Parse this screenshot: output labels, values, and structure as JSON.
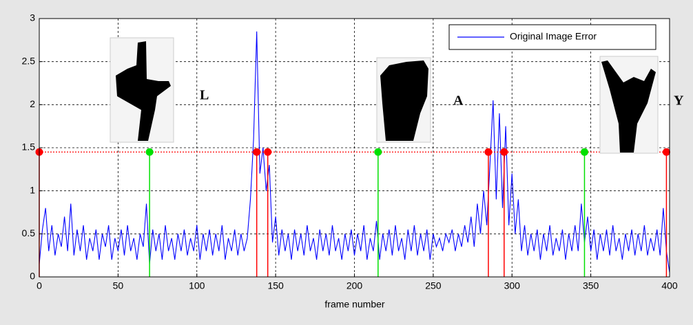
{
  "chart_data": {
    "type": "line",
    "x_label": "frame number",
    "xlim": [
      0,
      400
    ],
    "xticks": [
      0,
      50,
      100,
      150,
      200,
      250,
      300,
      350,
      400
    ],
    "ylim": [
      0,
      3
    ],
    "yticks": [
      0,
      0.5,
      1,
      1.5,
      2,
      2.5,
      3
    ],
    "grid": true,
    "legend": "upper right",
    "x": [
      0,
      2,
      4,
      6,
      8,
      10,
      12,
      14,
      16,
      18,
      20,
      22,
      24,
      26,
      28,
      30,
      32,
      34,
      36,
      38,
      40,
      42,
      44,
      46,
      48,
      50,
      52,
      54,
      56,
      58,
      60,
      62,
      64,
      66,
      68,
      70,
      72,
      74,
      76,
      78,
      80,
      82,
      84,
      86,
      88,
      90,
      92,
      94,
      96,
      98,
      100,
      102,
      104,
      106,
      108,
      110,
      112,
      114,
      116,
      118,
      120,
      122,
      124,
      126,
      128,
      130,
      132,
      134,
      136,
      138,
      140,
      142,
      144,
      146,
      148,
      150,
      152,
      154,
      156,
      158,
      160,
      162,
      164,
      166,
      168,
      170,
      172,
      174,
      176,
      178,
      180,
      182,
      184,
      186,
      188,
      190,
      192,
      194,
      196,
      198,
      200,
      202,
      204,
      206,
      208,
      210,
      212,
      214,
      216,
      218,
      220,
      222,
      224,
      226,
      228,
      230,
      232,
      234,
      236,
      238,
      240,
      242,
      244,
      246,
      248,
      250,
      252,
      254,
      256,
      258,
      260,
      262,
      264,
      266,
      268,
      270,
      272,
      274,
      276,
      278,
      280,
      282,
      284,
      286,
      288,
      290,
      292,
      294,
      296,
      298,
      300,
      302,
      304,
      306,
      308,
      310,
      312,
      314,
      316,
      318,
      320,
      322,
      324,
      326,
      328,
      330,
      332,
      334,
      336,
      338,
      340,
      342,
      344,
      346,
      348,
      350,
      352,
      354,
      356,
      358,
      360,
      362,
      364,
      366,
      368,
      370,
      372,
      374,
      376,
      378,
      380,
      382,
      384,
      386,
      388,
      390,
      392,
      394,
      396,
      398,
      400
    ],
    "series": [
      {
        "name": "Original Image Error",
        "color": "#0000ff",
        "values": [
          0.15,
          0.55,
          0.8,
          0.3,
          0.6,
          0.25,
          0.5,
          0.35,
          0.7,
          0.3,
          0.85,
          0.25,
          0.55,
          0.3,
          0.6,
          0.2,
          0.45,
          0.3,
          0.55,
          0.2,
          0.5,
          0.35,
          0.6,
          0.2,
          0.45,
          0.3,
          0.55,
          0.25,
          0.6,
          0.3,
          0.45,
          0.2,
          0.5,
          0.35,
          0.85,
          0.15,
          0.55,
          0.3,
          0.5,
          0.2,
          0.6,
          0.3,
          0.45,
          0.2,
          0.5,
          0.3,
          0.55,
          0.25,
          0.45,
          0.3,
          0.6,
          0.2,
          0.5,
          0.3,
          0.55,
          0.25,
          0.5,
          0.3,
          0.6,
          0.2,
          0.45,
          0.3,
          0.55,
          0.25,
          0.5,
          0.3,
          0.45,
          0.9,
          1.6,
          2.85,
          1.2,
          1.5,
          1.0,
          1.3,
          0.4,
          0.7,
          0.25,
          0.55,
          0.3,
          0.5,
          0.2,
          0.55,
          0.3,
          0.5,
          0.25,
          0.6,
          0.3,
          0.45,
          0.2,
          0.55,
          0.3,
          0.5,
          0.25,
          0.6,
          0.3,
          0.45,
          0.2,
          0.5,
          0.3,
          0.55,
          0.25,
          0.5,
          0.3,
          0.6,
          0.2,
          0.45,
          0.3,
          0.65,
          0.2,
          0.5,
          0.3,
          0.55,
          0.25,
          0.6,
          0.3,
          0.45,
          0.2,
          0.55,
          0.3,
          0.6,
          0.25,
          0.5,
          0.3,
          0.55,
          0.2,
          0.5,
          0.35,
          0.45,
          0.3,
          0.5,
          0.4,
          0.55,
          0.3,
          0.5,
          0.35,
          0.6,
          0.4,
          0.7,
          0.35,
          0.85,
          0.5,
          1.0,
          0.6,
          1.3,
          2.05,
          0.9,
          1.9,
          0.8,
          1.75,
          0.6,
          1.2,
          0.5,
          0.9,
          0.3,
          0.6,
          0.25,
          0.5,
          0.3,
          0.55,
          0.2,
          0.5,
          0.3,
          0.6,
          0.25,
          0.45,
          0.3,
          0.55,
          0.2,
          0.5,
          0.3,
          0.6,
          0.3,
          0.85,
          0.4,
          0.7,
          0.3,
          0.55,
          0.2,
          0.5,
          0.3,
          0.55,
          0.25,
          0.6,
          0.3,
          0.45,
          0.2,
          0.5,
          0.3,
          0.55,
          0.25,
          0.5,
          0.3,
          0.6,
          0.25,
          0.45,
          0.3,
          0.55,
          0.25,
          0.8,
          0.3,
          0.05
        ]
      }
    ],
    "markers": {
      "level": 1.45,
      "end_color": "#ff0000",
      "start_color": "#00e000",
      "ends": [
        0,
        138,
        145,
        285,
        295,
        398
      ],
      "starts": [
        70,
        215,
        346
      ]
    },
    "annotations": [
      "L",
      "A",
      "Y"
    ]
  }
}
